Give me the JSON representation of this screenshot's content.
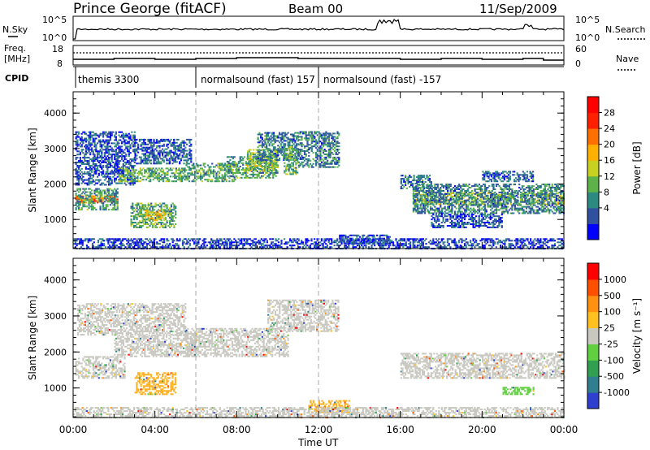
{
  "header": {
    "station": "Prince George (fitACF)",
    "beam": "Beam 00",
    "date": "11/Sep/2009"
  },
  "noise_panel": {
    "left_label": "N.Sky",
    "left_ticks": [
      "10^5",
      "10^0"
    ],
    "right_ticks": [
      "10^5",
      "10^0"
    ],
    "right_label": "N.Search"
  },
  "freq_panel": {
    "left_label_top": "Freq.",
    "left_label_bottom": "[MHz]",
    "left_ticks": [
      "18",
      "8"
    ],
    "right_ticks": [
      "60",
      "0"
    ],
    "right_label": "Nave"
  },
  "cpid": {
    "label": "CPID",
    "modes": [
      {
        "name": "themis 3300",
        "start_hour": 0
      },
      {
        "name": "normalsound (fast) 157",
        "start_hour": 6
      },
      {
        "name": "normalsound (fast) -157",
        "start_hour": 12
      }
    ]
  },
  "chart_data": [
    {
      "type": "heatmap",
      "name": "power",
      "ylabel": "Slant Range [km]",
      "yticks": [
        1000,
        2000,
        3000,
        4000
      ],
      "ylim": [
        180,
        4600
      ],
      "xlim": [
        0,
        24
      ],
      "colorbar": {
        "label": "Power [dB]",
        "ticks": [
          "28",
          "24",
          "20",
          "16",
          "12",
          "8",
          "4"
        ],
        "colors": [
          "#0000ff",
          "#3050a0",
          "#2d8a80",
          "#5db34a",
          "#c8d020",
          "#ffb000",
          "#ff7000",
          "#ff2000",
          "#ff0000"
        ]
      },
      "regions": [
        {
          "x0": 0.1,
          "x1": 2.2,
          "y0": 1500,
          "y1": 1700,
          "level": 0.72
        },
        {
          "x0": 0.1,
          "x1": 2.2,
          "y0": 1300,
          "y1": 1900,
          "level": 0.28
        },
        {
          "x0": 0.1,
          "x1": 3.0,
          "y0": 2000,
          "y1": 3500,
          "level": 0.12
        },
        {
          "x0": 2.2,
          "x1": 5.5,
          "y0": 2100,
          "y1": 2500,
          "level": 0.35
        },
        {
          "x0": 3.0,
          "x1": 5.8,
          "y0": 2600,
          "y1": 3300,
          "level": 0.15
        },
        {
          "x0": 2.8,
          "x1": 5.0,
          "y0": 800,
          "y1": 1500,
          "level": 0.32
        },
        {
          "x0": 3.5,
          "x1": 4.5,
          "y0": 1000,
          "y1": 1300,
          "level": 0.55
        },
        {
          "x0": 5.5,
          "x1": 8.0,
          "y0": 2100,
          "y1": 2600,
          "level": 0.32
        },
        {
          "x0": 7.5,
          "x1": 10.0,
          "y0": 2200,
          "y1": 2800,
          "level": 0.3
        },
        {
          "x0": 8.5,
          "x1": 10.0,
          "y0": 2400,
          "y1": 3000,
          "level": 0.4
        },
        {
          "x0": 9.0,
          "x1": 11.0,
          "y0": 2700,
          "y1": 3500,
          "level": 0.22
        },
        {
          "x0": 10.3,
          "x1": 11.0,
          "y0": 2300,
          "y1": 3100,
          "level": 0.35
        },
        {
          "x0": 11.0,
          "x1": 13.0,
          "y0": 2500,
          "y1": 3500,
          "level": 0.22
        },
        {
          "x0": 16.0,
          "x1": 17.5,
          "y0": 1900,
          "y1": 2300,
          "level": 0.18
        },
        {
          "x0": 16.6,
          "x1": 24.0,
          "y0": 1450,
          "y1": 1800,
          "level": 0.45
        },
        {
          "x0": 16.6,
          "x1": 24.0,
          "y0": 1200,
          "y1": 2050,
          "level": 0.22
        },
        {
          "x0": 17.5,
          "x1": 21.0,
          "y0": 800,
          "y1": 1200,
          "level": 0.12
        },
        {
          "x0": 20.0,
          "x1": 22.5,
          "y0": 2100,
          "y1": 2400,
          "level": 0.15
        },
        {
          "x0": 0.0,
          "x1": 24.0,
          "y0": 200,
          "y1": 500,
          "level": 0.08
        },
        {
          "x0": 13.0,
          "x1": 15.5,
          "y0": 350,
          "y1": 600,
          "level": 0.12
        }
      ]
    },
    {
      "type": "heatmap",
      "name": "velocity",
      "ylabel": "Slant Range [km]",
      "xlabel": "Time UT",
      "xticks": [
        "00:00",
        "04:00",
        "08:00",
        "12:00",
        "16:00",
        "20:00",
        "00:00"
      ],
      "yticks": [
        1000,
        2000,
        3000,
        4000
      ],
      "ylim": [
        180,
        4600
      ],
      "xlim": [
        0,
        24
      ],
      "colorbar": {
        "label": "Velocity [m s⁻¹]",
        "ticks": [
          "1000",
          "500",
          "100",
          "25",
          "-25",
          "-100",
          "-500",
          "-1000"
        ],
        "colors": [
          "#2f3fd0",
          "#2f7f90",
          "#30a050",
          "#60d040",
          "#c8c8c0",
          "#ffc020",
          "#ff9010",
          "#ff5000",
          "#ff0000"
        ]
      },
      "regions": [
        {
          "x0": 0.1,
          "x1": 2.5,
          "y0": 1300,
          "y1": 1900,
          "color": "#c8c8c0"
        },
        {
          "x0": 2.0,
          "x1": 6.0,
          "y0": 1900,
          "y1": 2500,
          "color": "#c8c8c0"
        },
        {
          "x0": 5.5,
          "x1": 10.5,
          "y0": 1900,
          "y1": 2700,
          "color": "#c8c8c0"
        },
        {
          "x0": 9.5,
          "x1": 13.0,
          "y0": 2600,
          "y1": 3500,
          "color": "#c8c8c0"
        },
        {
          "x0": 0.2,
          "x1": 5.5,
          "y0": 2500,
          "y1": 3400,
          "color": "#c8c8c0"
        },
        {
          "x0": 3.0,
          "x1": 5.0,
          "y0": 850,
          "y1": 1450,
          "color": "#ffb020"
        },
        {
          "x0": 16.0,
          "x1": 24.0,
          "y0": 1300,
          "y1": 2000,
          "color": "#c8c8c0"
        },
        {
          "x0": 21.0,
          "x1": 22.5,
          "y0": 850,
          "y1": 1050,
          "color": "#60d040"
        },
        {
          "x0": 11.5,
          "x1": 13.5,
          "y0": 350,
          "y1": 700,
          "color": "#ffb020"
        },
        {
          "x0": 0.0,
          "x1": 24.0,
          "y0": 200,
          "y1": 500,
          "color": "#c8c8c0"
        }
      ]
    }
  ]
}
